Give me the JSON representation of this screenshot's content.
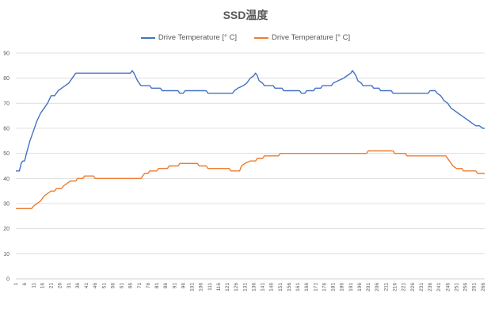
{
  "chart_data": {
    "type": "line",
    "title": "SSD温度",
    "xlabel": "",
    "ylabel": "",
    "ylim": [
      0,
      90
    ],
    "yticks": [
      0,
      10,
      20,
      30,
      40,
      50,
      60,
      70,
      80,
      90
    ],
    "xlim": [
      1,
      267
    ],
    "xticks": [
      1,
      6,
      11,
      16,
      21,
      26,
      31,
      36,
      41,
      46,
      51,
      56,
      61,
      66,
      71,
      76,
      81,
      86,
      91,
      96,
      101,
      106,
      111,
      116,
      121,
      126,
      131,
      136,
      141,
      146,
      151,
      156,
      161,
      166,
      171,
      176,
      181,
      186,
      191,
      196,
      201,
      206,
      211,
      216,
      221,
      226,
      231,
      236,
      241,
      246,
      251,
      256,
      261,
      266
    ],
    "grid": true,
    "legend_position": "top",
    "series": [
      {
        "name": "Drive Temperature [° C]",
        "color": "#4472C4",
        "points": [
          [
            1,
            43
          ],
          [
            3,
            43
          ],
          [
            4,
            46
          ],
          [
            5,
            47
          ],
          [
            6,
            47
          ],
          [
            7,
            50
          ],
          [
            9,
            55
          ],
          [
            11,
            59
          ],
          [
            13,
            63
          ],
          [
            15,
            66
          ],
          [
            17,
            68
          ],
          [
            19,
            70
          ],
          [
            21,
            73
          ],
          [
            23,
            73
          ],
          [
            25,
            75
          ],
          [
            27,
            76
          ],
          [
            29,
            77
          ],
          [
            31,
            78
          ],
          [
            33,
            80
          ],
          [
            35,
            82
          ],
          [
            66,
            82
          ],
          [
            67,
            83
          ],
          [
            68,
            82
          ],
          [
            70,
            79
          ],
          [
            72,
            77
          ],
          [
            77,
            77
          ],
          [
            78,
            76
          ],
          [
            83,
            76
          ],
          [
            84,
            75
          ],
          [
            93,
            75
          ],
          [
            94,
            74
          ],
          [
            96,
            74
          ],
          [
            97,
            75
          ],
          [
            109,
            75
          ],
          [
            110,
            74
          ],
          [
            124,
            74
          ],
          [
            125,
            75
          ],
          [
            127,
            76
          ],
          [
            130,
            77
          ],
          [
            132,
            78
          ],
          [
            134,
            80
          ],
          [
            136,
            81
          ],
          [
            137,
            82
          ],
          [
            138,
            81
          ],
          [
            139,
            79
          ],
          [
            141,
            78
          ],
          [
            142,
            77
          ],
          [
            147,
            77
          ],
          [
            148,
            76
          ],
          [
            152,
            76
          ],
          [
            153,
            75
          ],
          [
            162,
            75
          ],
          [
            163,
            74
          ],
          [
            165,
            74
          ],
          [
            166,
            75
          ],
          [
            170,
            75
          ],
          [
            171,
            76
          ],
          [
            174,
            76
          ],
          [
            175,
            77
          ],
          [
            180,
            77
          ],
          [
            181,
            78
          ],
          [
            184,
            79
          ],
          [
            187,
            80
          ],
          [
            189,
            81
          ],
          [
            191,
            82
          ],
          [
            192,
            83
          ],
          [
            193,
            82
          ],
          [
            194,
            81
          ],
          [
            195,
            79
          ],
          [
            197,
            78
          ],
          [
            198,
            77
          ],
          [
            203,
            77
          ],
          [
            204,
            76
          ],
          [
            207,
            76
          ],
          [
            208,
            75
          ],
          [
            214,
            75
          ],
          [
            215,
            74
          ],
          [
            235,
            74
          ],
          [
            236,
            75
          ],
          [
            239,
            75
          ],
          [
            240,
            74
          ],
          [
            242,
            73
          ],
          [
            244,
            71
          ],
          [
            246,
            70
          ],
          [
            248,
            68
          ],
          [
            250,
            67
          ],
          [
            252,
            66
          ],
          [
            254,
            65
          ],
          [
            256,
            64
          ],
          [
            258,
            63
          ],
          [
            260,
            62
          ],
          [
            262,
            61
          ],
          [
            264,
            61
          ],
          [
            266,
            60
          ],
          [
            267,
            60
          ]
        ]
      },
      {
        "name": "Drive Temperature [° C]",
        "color": "#ED7D31",
        "points": [
          [
            1,
            28
          ],
          [
            10,
            28
          ],
          [
            11,
            29
          ],
          [
            13,
            30
          ],
          [
            15,
            31
          ],
          [
            17,
            33
          ],
          [
            19,
            34
          ],
          [
            21,
            35
          ],
          [
            23,
            35
          ],
          [
            24,
            36
          ],
          [
            27,
            36
          ],
          [
            28,
            37
          ],
          [
            30,
            38
          ],
          [
            32,
            39
          ],
          [
            35,
            39
          ],
          [
            36,
            40
          ],
          [
            39,
            40
          ],
          [
            40,
            41
          ],
          [
            45,
            41
          ],
          [
            46,
            40
          ],
          [
            72,
            40
          ],
          [
            73,
            41
          ],
          [
            74,
            42
          ],
          [
            76,
            42
          ],
          [
            77,
            43
          ],
          [
            81,
            43
          ],
          [
            82,
            44
          ],
          [
            87,
            44
          ],
          [
            88,
            45
          ],
          [
            93,
            45
          ],
          [
            94,
            46
          ],
          [
            104,
            46
          ],
          [
            105,
            45
          ],
          [
            109,
            45
          ],
          [
            110,
            44
          ],
          [
            122,
            44
          ],
          [
            123,
            43
          ],
          [
            128,
            43
          ],
          [
            129,
            45
          ],
          [
            131,
            46
          ],
          [
            134,
            47
          ],
          [
            137,
            47
          ],
          [
            138,
            48
          ],
          [
            141,
            48
          ],
          [
            142,
            49
          ],
          [
            150,
            49
          ],
          [
            151,
            50
          ],
          [
            200,
            50
          ],
          [
            201,
            51
          ],
          [
            215,
            51
          ],
          [
            216,
            50
          ],
          [
            222,
            50
          ],
          [
            223,
            49
          ],
          [
            245,
            49
          ],
          [
            247,
            47
          ],
          [
            249,
            45
          ],
          [
            251,
            44
          ],
          [
            254,
            44
          ],
          [
            255,
            43
          ],
          [
            262,
            43
          ],
          [
            263,
            42
          ],
          [
            267,
            42
          ]
        ]
      }
    ]
  }
}
